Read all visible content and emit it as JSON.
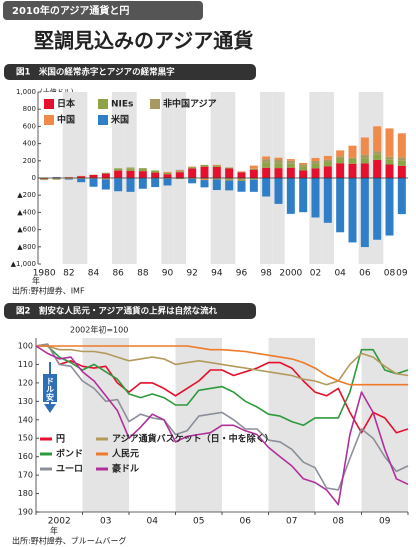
{
  "header": {
    "tag": "2010年のアジア通貨と円",
    "headline": "堅調見込みのアジア通貨"
  },
  "chart_data": [
    {
      "type": "stacked_bar",
      "title": "図1　米国の経常赤字とアジアの経常黒字",
      "y_unit": "(十億ドル)",
      "x_unit": "年",
      "source": "出所:野村證券、IMF",
      "categories": [
        "1980",
        null,
        "82",
        null,
        "84",
        null,
        "86",
        null,
        "88",
        null,
        "90",
        null,
        "92",
        null,
        "94",
        null,
        "96",
        null,
        "98",
        null,
        "2000",
        null,
        "02",
        null,
        "04",
        null,
        "06",
        null,
        "08",
        "09"
      ],
      "series": [
        {
          "name": "日本",
          "color": "#e60f2d",
          "values": [
            -10,
            5,
            7,
            21,
            35,
            51,
            86,
            84,
            80,
            63,
            44,
            68,
            112,
            132,
            130,
            111,
            66,
            97,
            119,
            115,
            120,
            88,
            113,
            136,
            172,
            166,
            171,
            211,
            157,
            140
          ]
        },
        {
          "name": "NIEs",
          "color": "#8ea446",
          "values": [
            -5,
            -5,
            -2,
            0,
            3,
            10,
            25,
            30,
            30,
            25,
            15,
            10,
            15,
            20,
            15,
            10,
            5,
            10,
            60,
            55,
            45,
            45,
            55,
            50,
            55,
            55,
            60,
            60,
            60,
            60
          ]
        },
        {
          "name": "非中国アジア",
          "color": "#a89a5e",
          "values": [
            -10,
            -15,
            -12,
            -10,
            -8,
            -5,
            2,
            8,
            5,
            -2,
            -8,
            -12,
            -10,
            -12,
            -18,
            -30,
            -35,
            -20,
            40,
            45,
            35,
            25,
            30,
            25,
            25,
            15,
            40,
            40,
            30,
            40
          ]
        },
        {
          "name": "中国",
          "color": "#ef8a4a",
          "values": [
            0,
            2,
            5,
            4,
            2,
            -11,
            -7,
            0,
            -4,
            -4,
            12,
            13,
            6,
            -12,
            8,
            2,
            7,
            37,
            31,
            21,
            20,
            17,
            35,
            46,
            69,
            140,
            200,
            290,
            330,
            280
          ]
        },
        {
          "name": "米国",
          "color": "#2f7fc8",
          "values": [
            2,
            5,
            -6,
            -39,
            -94,
            -118,
            -147,
            -161,
            -121,
            -99,
            -79,
            3,
            -52,
            -85,
            -122,
            -114,
            -125,
            -141,
            -215,
            -301,
            -417,
            -398,
            -459,
            -521,
            -631,
            -749,
            -803,
            -718,
            -669,
            -420
          ]
        }
      ],
      "ylim": [
        -1000,
        1000
      ],
      "yticks": [
        {
          "value": 1000,
          "label": "1,000"
        },
        800,
        600,
        400,
        200,
        0,
        {
          "value": -200,
          "label": "▲200"
        },
        {
          "value": -400,
          "label": "▲400"
        },
        {
          "value": -600,
          "label": "▲600"
        },
        {
          "value": -800,
          "label": "▲800"
        },
        {
          "value": -1000,
          "label": "▲1,000"
        }
      ]
    },
    {
      "type": "line",
      "title": "図2　割安な人民元・アジア通貨の上昇は自然な流れ",
      "subtitle": "2002年初=100",
      "x_unit": "年",
      "source": "出所:野村證券、ブルームバーグ",
      "annotation": "ドル安",
      "x": [
        2002,
        2002.25,
        2002.5,
        2002.75,
        2003,
        2003.25,
        2003.5,
        2003.75,
        2004,
        2004.25,
        2004.5,
        2004.75,
        2005,
        2005.25,
        2005.5,
        2005.75,
        2006,
        2006.25,
        2006.5,
        2006.75,
        2007,
        2007.25,
        2007.5,
        2007.75,
        2008,
        2008.25,
        2008.5,
        2008.75,
        2009,
        2009.25,
        2009.5,
        2009.75,
        2010
      ],
      "xlim": [
        2002,
        2010
      ],
      "xticks": [
        2002,
        2003,
        2004,
        2005,
        2006,
        2007,
        2008,
        2009,
        2010
      ],
      "categories": [
        "2002",
        "03",
        "04",
        "05",
        "06",
        "07",
        "08",
        "09"
      ],
      "ylim": [
        100,
        190
      ],
      "y_inverted": true,
      "yticks": [
        100,
        110,
        120,
        130,
        140,
        150,
        160,
        170,
        180,
        190
      ],
      "series": [
        {
          "name": "円",
          "color": "#e60f2d",
          "values": [
            100,
            99,
            110,
            108,
            111,
            112,
            111,
            120,
            125,
            120,
            120,
            123,
            127,
            123,
            119,
            113,
            113,
            116,
            114,
            112,
            109,
            109,
            112,
            119,
            125,
            127,
            123,
            136,
            147,
            136,
            139,
            147,
            145
          ]
        },
        {
          "name": "ボンド",
          "color": "#2e9a3e",
          "values": [
            100,
            100,
            106,
            109,
            113,
            110,
            114,
            118,
            126,
            128,
            126,
            128,
            132,
            132,
            124,
            123,
            122,
            125,
            130,
            133,
            137,
            138,
            141,
            143,
            139,
            139,
            139,
            125,
            102,
            102,
            113,
            115,
            113
          ]
        },
        {
          "name": "ユーロ",
          "color": "#8a8f9a",
          "values": [
            100,
            99,
            110,
            111,
            119,
            123,
            130,
            129,
            141,
            137,
            139,
            140,
            148,
            146,
            138,
            137,
            136,
            140,
            145,
            145,
            151,
            152,
            156,
            163,
            166,
            177,
            178,
            161,
            145,
            150,
            160,
            168,
            165
          ]
        },
        {
          "name": "アジア通貨バスケット（日・中を除く）",
          "color": "#b39a5c",
          "values": [
            100,
            100,
            102,
            102,
            103,
            103,
            104,
            106,
            108,
            107,
            106,
            107,
            110,
            109,
            108,
            109,
            110,
            111,
            112,
            113,
            114,
            115,
            116,
            118,
            119,
            121,
            119,
            110,
            104,
            106,
            111,
            115,
            116
          ]
        },
        {
          "name": "人民元",
          "color": "#ef7a2a",
          "values": [
            100,
            100,
            100,
            100,
            100,
            100,
            100,
            100,
            100,
            100,
            100,
            100,
            100,
            100,
            101,
            102,
            102,
            102.5,
            103,
            104,
            105,
            106,
            107,
            109,
            112,
            116,
            119,
            121,
            121,
            121,
            121,
            121,
            121
          ]
        },
        {
          "name": "豪ドル",
          "color": "#b0309a",
          "values": [
            100,
            104,
            107,
            106,
            114,
            119,
            127,
            135,
            150,
            144,
            137,
            140,
            152,
            149,
            148,
            147,
            143,
            143,
            146,
            148,
            155,
            160,
            165,
            172,
            174,
            178,
            186,
            148,
            125,
            136,
            156,
            172,
            175
          ]
        }
      ]
    }
  ]
}
